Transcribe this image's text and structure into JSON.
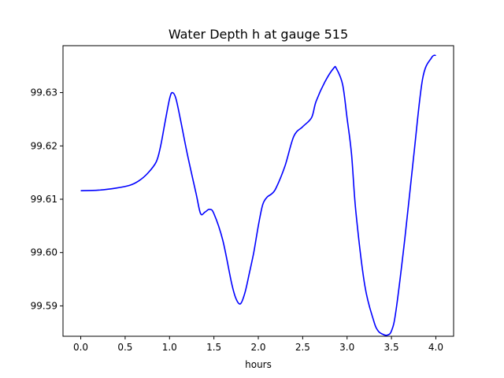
{
  "chart_data": {
    "type": "line",
    "title": "Water Depth h at gauge 515",
    "xlabel": "hours",
    "ylabel": "",
    "xlim": [
      -0.2,
      4.2
    ],
    "ylim": [
      99.5843,
      99.6388
    ],
    "grid": false,
    "x_ticks": [
      0.0,
      0.5,
      1.0,
      1.5,
      2.0,
      2.5,
      3.0,
      3.5,
      4.0
    ],
    "x_tick_labels": [
      "0.0",
      "0.5",
      "1.0",
      "1.5",
      "2.0",
      "2.5",
      "3.0",
      "3.5",
      "4.0"
    ],
    "y_ticks": [
      99.59,
      99.6,
      99.61,
      99.62,
      99.63
    ],
    "y_tick_labels": [
      "99.59",
      "99.60",
      "99.61",
      "99.62",
      "99.63"
    ],
    "series": [
      {
        "color": "#0000ff",
        "x": [
          0.0,
          0.2,
          0.4,
          0.55,
          0.65,
          0.75,
          0.85,
          0.9,
          0.95,
          1.0,
          1.03,
          1.07,
          1.12,
          1.2,
          1.3,
          1.35,
          1.4,
          1.45,
          1.5,
          1.6,
          1.7,
          1.75,
          1.8,
          1.85,
          1.9,
          1.95,
          2.0,
          2.05,
          2.1,
          2.15,
          2.2,
          2.3,
          2.4,
          2.5,
          2.6,
          2.65,
          2.75,
          2.85,
          2.88,
          2.95,
          3.0,
          3.05,
          3.1,
          3.2,
          3.3,
          3.35,
          3.4,
          3.45,
          3.5,
          3.55,
          3.65,
          3.75,
          3.85,
          3.95,
          4.0
        ],
        "y": [
          99.6116,
          99.6117,
          99.6121,
          99.6126,
          99.6134,
          99.6148,
          99.617,
          99.62,
          99.6245,
          99.6288,
          99.63,
          99.629,
          99.6252,
          99.6185,
          99.611,
          99.6073,
          99.6076,
          99.6081,
          99.6073,
          99.6023,
          99.5942,
          99.5913,
          99.5904,
          99.5925,
          99.5962,
          99.6001,
          99.605,
          99.609,
          99.6104,
          99.611,
          99.6121,
          99.6162,
          99.6218,
          99.6236,
          99.6253,
          99.6283,
          99.632,
          99.6346,
          99.6345,
          99.6315,
          99.6252,
          99.6185,
          99.6075,
          99.5938,
          99.5872,
          99.5853,
          99.5847,
          99.5845,
          99.5853,
          99.589,
          99.6025,
          99.618,
          99.6325,
          99.6365,
          99.637
        ]
      }
    ]
  }
}
